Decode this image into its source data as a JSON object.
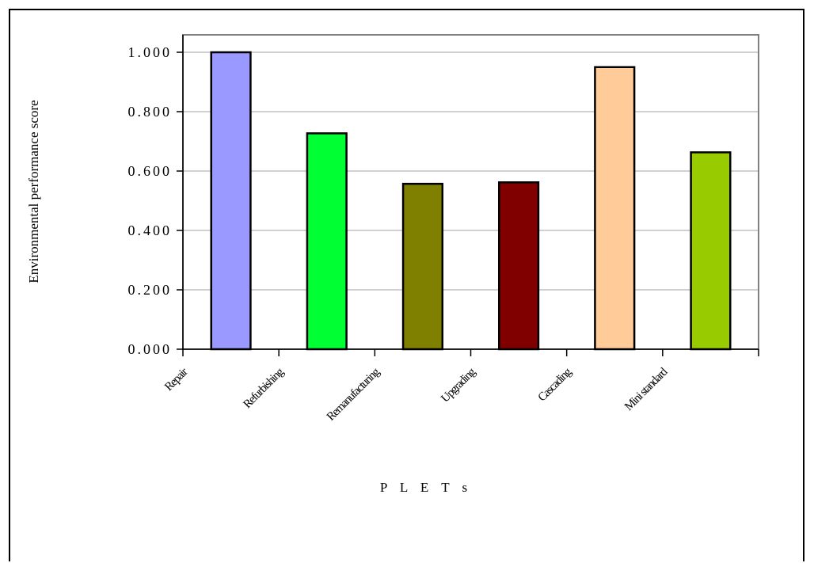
{
  "chart_data": {
    "type": "bar",
    "title": "",
    "xlabel": "P L E T s",
    "ylabel": "Environmental performance score",
    "ylim": [
      0,
      1.0
    ],
    "ytick_step": 0.2,
    "ytick_labels": [
      "0.000",
      "0.200",
      "0.400",
      "0.600",
      "0.800",
      "1.000"
    ],
    "categories": [
      "Repair",
      "Refurbishing",
      "Remanufacturing",
      "Upgrading",
      "Cascading",
      "Mini standard"
    ],
    "values": [
      1.0,
      0.727,
      0.557,
      0.562,
      0.95,
      0.663
    ],
    "colors": [
      "#9999ff",
      "#00ff33",
      "#808000",
      "#800000",
      "#ffcc99",
      "#99cc00"
    ],
    "grid": true,
    "legend": "none"
  }
}
